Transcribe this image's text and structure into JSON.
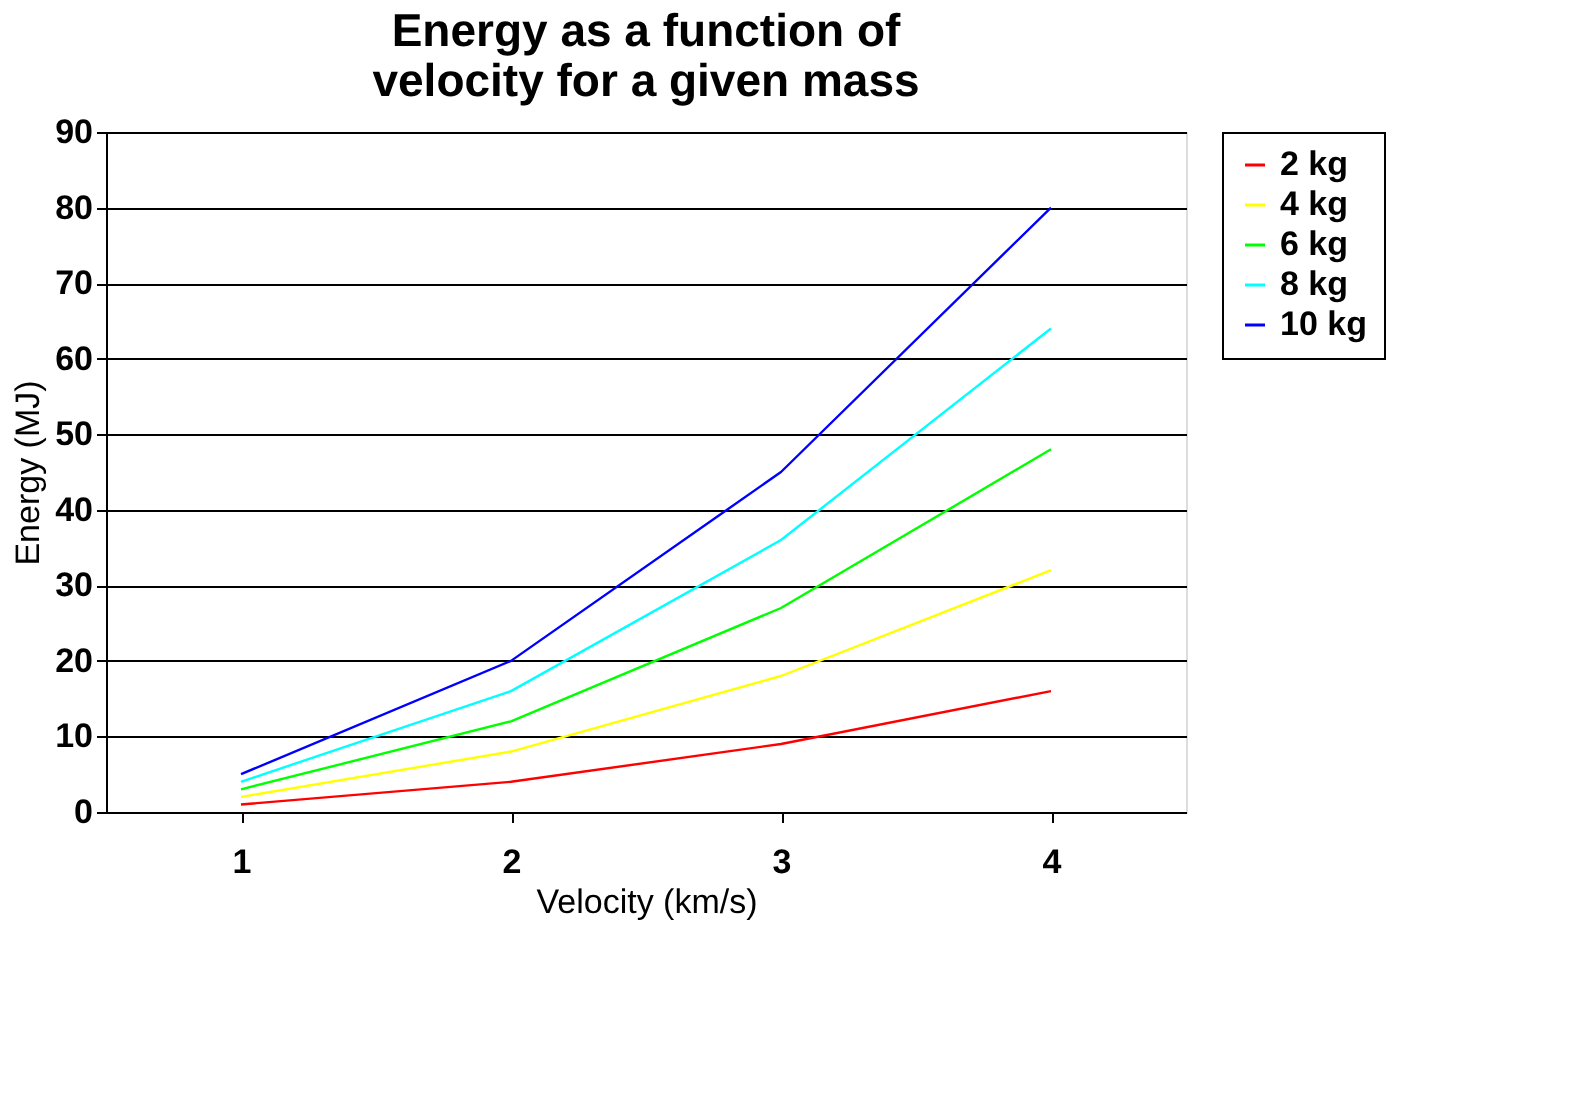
{
  "chart_data": {
    "type": "line",
    "title": "Energy as a function of\nvelocity for a given mass",
    "xlabel": "Velocity (km/s)",
    "ylabel": "Energy (MJ)",
    "categories": [
      "1",
      "2",
      "3",
      "4"
    ],
    "series": [
      {
        "name": "2 kg",
        "color": "#ff0000",
        "values": [
          1,
          4,
          9,
          16
        ]
      },
      {
        "name": "4 kg",
        "color": "#ffff00",
        "values": [
          2,
          8,
          18,
          32
        ]
      },
      {
        "name": "6 kg",
        "color": "#00ff00",
        "values": [
          3,
          12,
          27,
          48
        ]
      },
      {
        "name": "8 kg",
        "color": "#00ffff",
        "values": [
          4,
          16,
          36,
          64
        ]
      },
      {
        "name": "10 kg",
        "color": "#0000ff",
        "values": [
          5,
          20,
          45,
          80
        ]
      }
    ],
    "ylim": [
      0,
      90
    ],
    "yticks": [
      0,
      10,
      20,
      30,
      40,
      50,
      60,
      70,
      80,
      90
    ],
    "grid": "y",
    "legend": "right",
    "marker": "none",
    "line_style": "solid"
  }
}
